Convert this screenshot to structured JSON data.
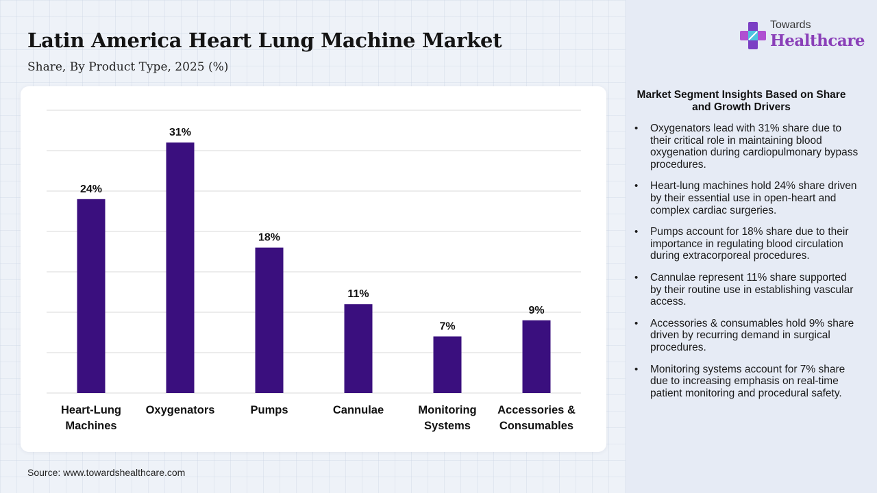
{
  "header": {
    "title": "Latin America Heart Lung Machine Market",
    "subtitle": "Share, By Product Type, 2025 (%)"
  },
  "logo": {
    "top_text": "Towards",
    "main_text": "Healthcare"
  },
  "chart_data": {
    "type": "bar",
    "categories": [
      [
        "Heart-Lung",
        "Machines"
      ],
      [
        "Oxygenators"
      ],
      [
        "Pumps"
      ],
      [
        "Cannulae"
      ],
      [
        "Monitoring",
        "Systems"
      ],
      [
        "Accessories &",
        "Consumables"
      ]
    ],
    "values": [
      24,
      31,
      18,
      11,
      7,
      9
    ],
    "value_labels": [
      "24%",
      "31%",
      "18%",
      "11%",
      "7%",
      "9%"
    ],
    "ylim": [
      0,
      35
    ],
    "grid": true,
    "bar_color": "#3a0f7e"
  },
  "insights": {
    "title": "Market Segment Insights Based on Share and Growth Drivers",
    "items": [
      "Oxygenators lead with 31% share due to their critical role in maintaining blood oxygenation during cardiopulmonary bypass procedures.",
      "Heart-lung machines hold 24% share driven by their essential use in open-heart and complex cardiac surgeries.",
      "Pumps account for 18% share due to their importance in regulating blood circulation during extracorporeal procedures.",
      "Cannulae represent 11% share supported by their routine use in establishing vascular access.",
      "Accessories & consumables hold 9% share driven by recurring demand in surgical procedures.",
      "Monitoring systems account for 7% share due to increasing emphasis on real-time patient monitoring and procedural safety."
    ]
  },
  "source": "Source: www.towardshealthcare.com"
}
